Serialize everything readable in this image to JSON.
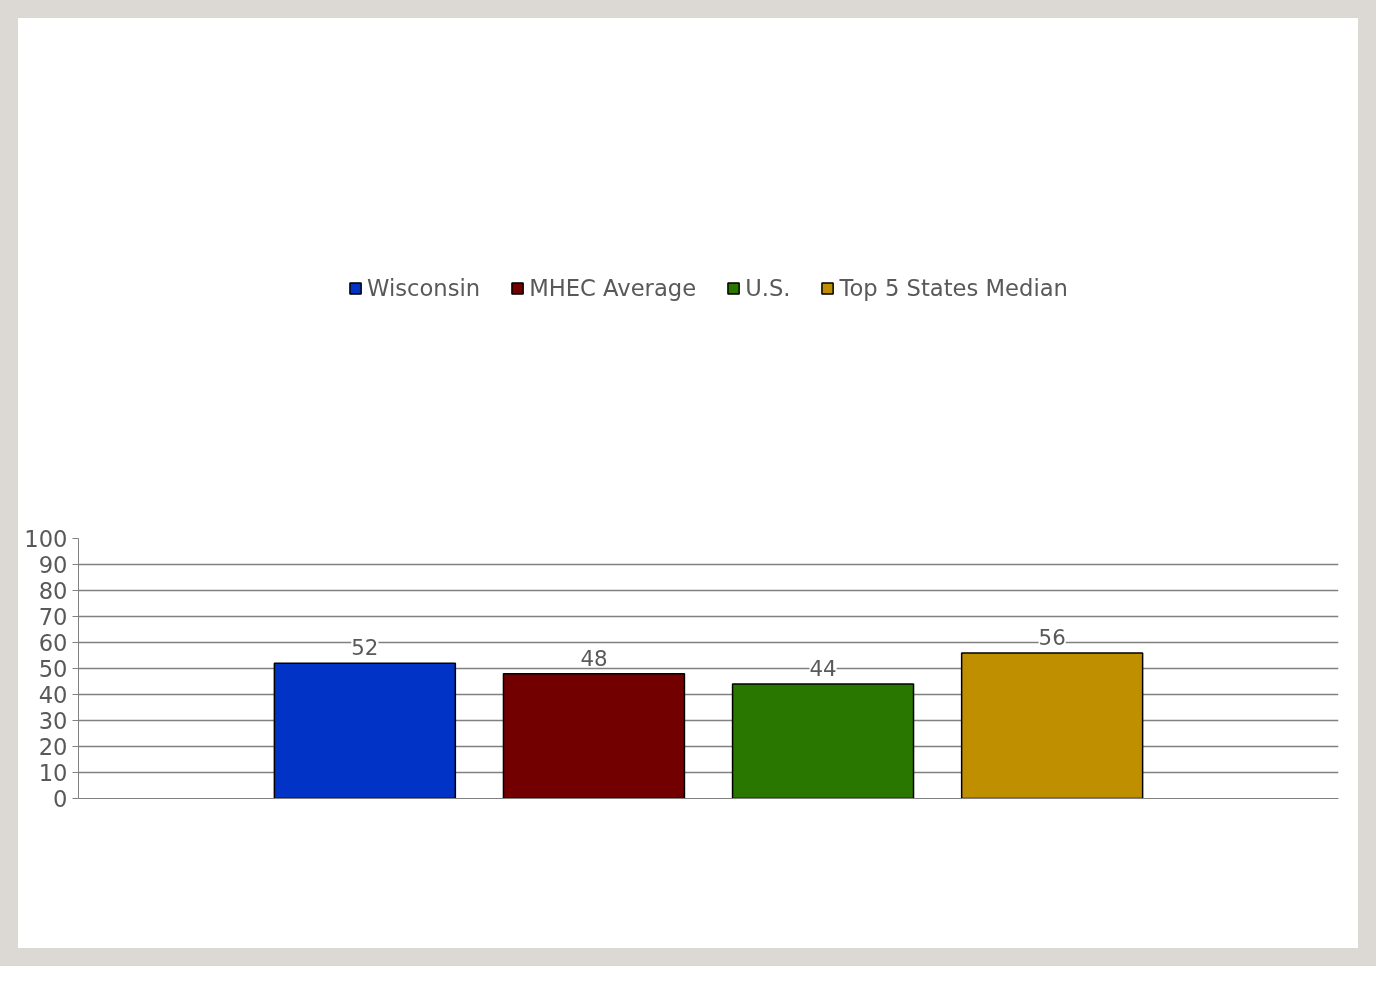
{
  "chart_data": {
    "type": "bar",
    "categories": [
      null
    ],
    "series": [
      {
        "name": "Wisconsin",
        "color": "#0033c6",
        "values": [
          52
        ]
      },
      {
        "name": "MHEC Average",
        "color": "#730000",
        "values": [
          48
        ]
      },
      {
        "name": "U.S.",
        "color": "#2a7700",
        "values": [
          44
        ]
      },
      {
        "name": "Top 5 States Median",
        "color": "#bf8f00",
        "values": [
          56
        ]
      }
    ],
    "ylim": [
      0,
      100
    ],
    "yticks": [
      0,
      10,
      20,
      30,
      40,
      50,
      60,
      70,
      80,
      90,
      100
    ],
    "grid": "y",
    "legend": "top",
    "data_labels": true,
    "tick_labels": "y"
  }
}
